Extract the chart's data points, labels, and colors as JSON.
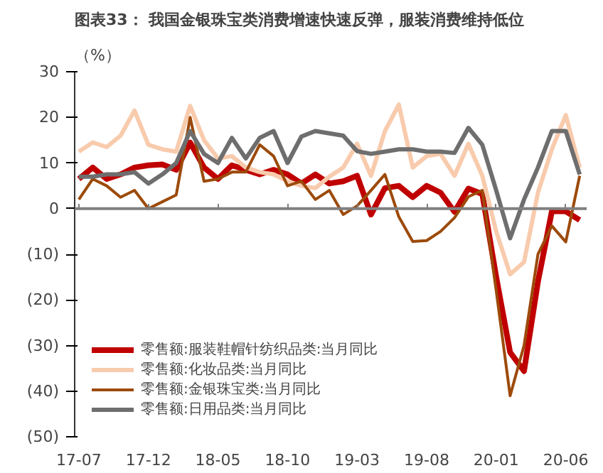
{
  "chart_data": {
    "type": "line",
    "title": "图表33：  我国金银珠宝类消费增速快速反弹，服装消费维持低位",
    "ylabel": "（%）",
    "categories": [
      "17-07",
      null,
      null,
      null,
      null,
      "17-12",
      null,
      null,
      null,
      null,
      "18-05",
      null,
      null,
      null,
      null,
      "18-10",
      null,
      null,
      null,
      null,
      "19-03",
      null,
      null,
      null,
      null,
      "19-08",
      null,
      null,
      null,
      null,
      "20-01",
      null,
      null,
      null,
      null,
      "20-06",
      null
    ],
    "ylim": [
      -50,
      30
    ],
    "yticks": [
      {
        "value": -50,
        "label": "(50)"
      },
      {
        "value": -40,
        "label": "(40)"
      },
      {
        "value": -30,
        "label": "(30)"
      },
      {
        "value": -20,
        "label": "(20)"
      },
      {
        "value": -10,
        "label": "(10)"
      },
      0,
      10,
      20,
      30
    ],
    "legend": "bottom left",
    "grid": false,
    "ref_lines": [
      {
        "axis": "y",
        "value": 0,
        "color": "#808080"
      }
    ],
    "series": [
      {
        "name": "零售额:服装鞋帽针纺织品类:当月同比",
        "color": "#c00000",
        "values": [
          6.5,
          9,
          6.5,
          7.5,
          9,
          9.5,
          9.7,
          8.5,
          14.5,
          9,
          6.5,
          9.5,
          8.5,
          7.5,
          8.5,
          7.5,
          5.5,
          7.5,
          5.5,
          6,
          7.2,
          -1.3,
          4.5,
          5,
          2.5,
          5,
          3.5,
          -0.7,
          4.4,
          3.2,
          -15,
          -31.5,
          -35.6,
          -16,
          -0.6,
          -0.6,
          -2.5
        ]
      },
      {
        "name": "零售额:化妆品类:当月同比",
        "color": "#f8cbad",
        "values": [
          12.5,
          14.5,
          13.5,
          16,
          21.5,
          14,
          13,
          12.5,
          22.5,
          15,
          11,
          11.5,
          9,
          8,
          7.5,
          6,
          5,
          4.5,
          7,
          9,
          14.2,
          7.2,
          17,
          22.8,
          9,
          11.5,
          12,
          7.2,
          14.2,
          7.2,
          -5,
          -14.4,
          -11.7,
          3.5,
          13,
          20.5,
          9
        ]
      },
      {
        "name": "零售额:金银珠宝类:当月同比",
        "color": "#9c4a0a",
        "values": [
          2,
          6.5,
          5,
          2.5,
          4,
          0,
          1.5,
          3,
          20,
          6,
          6.5,
          8,
          8,
          14,
          11.5,
          5,
          6,
          2,
          4,
          -1.3,
          0.6,
          4,
          7.5,
          -1.8,
          -7.2,
          -7,
          -5,
          -2,
          2.6,
          4,
          -18,
          -41,
          -30,
          -10,
          -3.8,
          -7.3,
          7.2
        ]
      },
      {
        "name": "零售额:日用品类:当月同比",
        "color": "#6e6e6e",
        "values": [
          7,
          7,
          7.5,
          7.5,
          8,
          5.5,
          7.5,
          10,
          17,
          12,
          10,
          15.5,
          11,
          15.5,
          17,
          10,
          15.8,
          17,
          16.5,
          16,
          12.6,
          12,
          12.5,
          13,
          13,
          12.5,
          12.5,
          12.2,
          17.7,
          14,
          4,
          -6.5,
          2,
          9,
          17,
          17,
          7.5
        ]
      }
    ]
  }
}
